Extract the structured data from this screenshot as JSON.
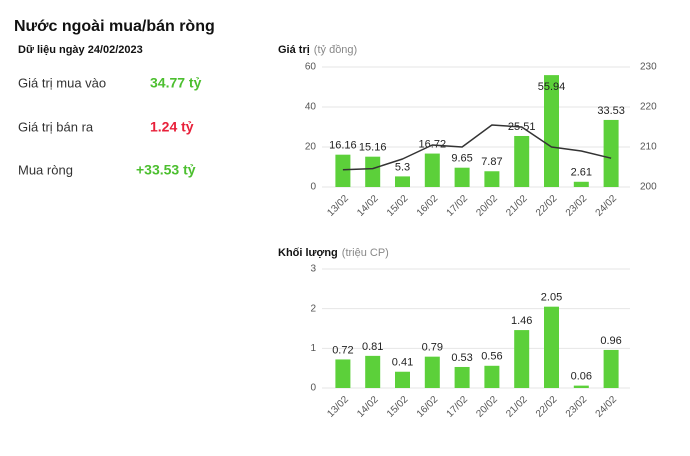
{
  "panel": {
    "title": "Nước ngoài mua/bán ròng",
    "date": "Dữ liệu ngày 24/02/2023",
    "rows": [
      {
        "label": "Giá trị mua vào",
        "value": "34.77 tỷ",
        "color": "#4cbf2f"
      },
      {
        "label": "Giá trị bán ra",
        "value": "1.24 tỷ",
        "color": "#e8203a"
      },
      {
        "label": "Mua ròng",
        "value": "+33.53 tỷ",
        "color": "#4cbf2f"
      }
    ]
  },
  "chart_data": [
    {
      "type": "bar",
      "y_label": "Giá trị",
      "y_unit": "(tỷ đồng)",
      "categories": [
        "13/02",
        "14/02",
        "15/02",
        "16/02",
        "17/02",
        "20/02",
        "21/02",
        "22/02",
        "23/02",
        "24/02"
      ],
      "series": [
        {
          "type": "bar",
          "color": "#5cd03a",
          "values": [
            16.16,
            15.16,
            5.3,
            16.72,
            9.65,
            7.87,
            25.51,
            55.94,
            2.61,
            33.53
          ]
        },
        {
          "type": "line",
          "axis": "y2",
          "color": "#333333",
          "values": [
            204.3,
            204.6,
            207,
            210.5,
            210,
            215.5,
            215,
            210,
            209,
            207.2
          ]
        }
      ],
      "ylim": [
        0,
        60
      ],
      "yticks": [
        0,
        20,
        40,
        60
      ],
      "y2lim": [
        200,
        230
      ],
      "y2ticks": [
        200,
        210,
        220,
        230
      ],
      "grid": true
    },
    {
      "type": "bar",
      "y_label": "Khối lượng",
      "y_unit": "(triệu CP)",
      "categories": [
        "13/02",
        "14/02",
        "15/02",
        "16/02",
        "17/02",
        "20/02",
        "21/02",
        "22/02",
        "23/02",
        "24/02"
      ],
      "series": [
        {
          "type": "bar",
          "color": "#5cd03a",
          "values": [
            0.72,
            0.81,
            0.41,
            0.79,
            0.53,
            0.56,
            1.46,
            2.05,
            0.06,
            0.96
          ]
        }
      ],
      "ylim": [
        0,
        3
      ],
      "yticks": [
        0,
        1,
        2,
        3
      ],
      "grid": true
    }
  ]
}
